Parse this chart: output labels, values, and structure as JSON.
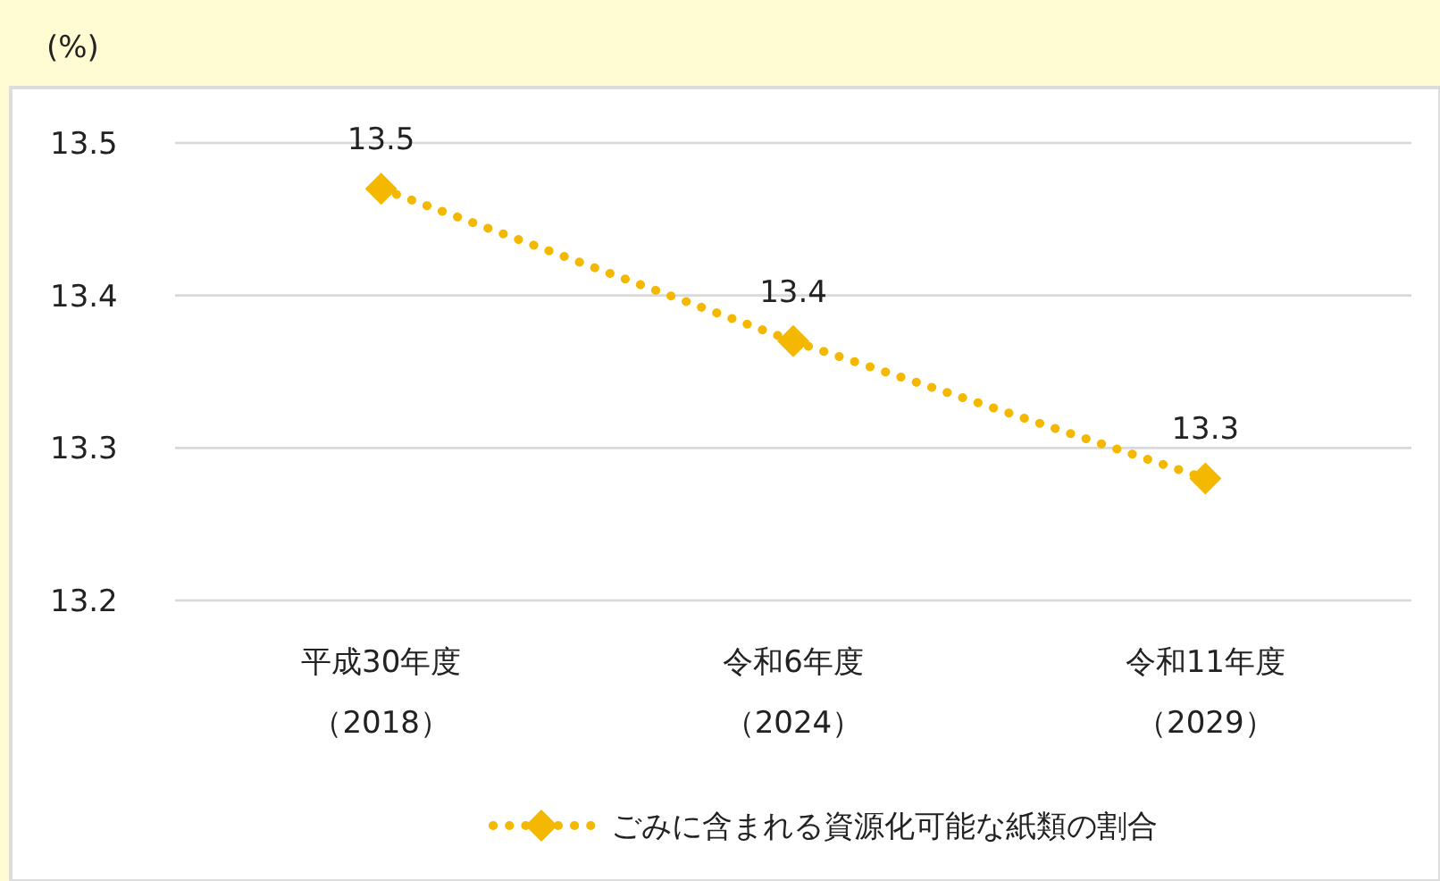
{
  "chart_data": {
    "type": "line",
    "ylabel": "(%)",
    "categories": [
      "平成30年度（2018）",
      "令和6年度（2024）",
      "令和11年度（2029）"
    ],
    "series": [
      {
        "name": "ごみに含まれる資源化可能な紙類の割合",
        "color": "#f5b800",
        "values": [
          13.47,
          13.37,
          13.28
        ],
        "value_labels": [
          "13.5",
          "13.4",
          "13.3"
        ]
      }
    ],
    "ylim": [
      13.2,
      13.5
    ],
    "yticks": [
      13.2,
      13.3,
      13.4,
      13.5
    ],
    "grid": "y",
    "legend": "bottom",
    "marker": "diamond",
    "line_style": "dotted"
  }
}
